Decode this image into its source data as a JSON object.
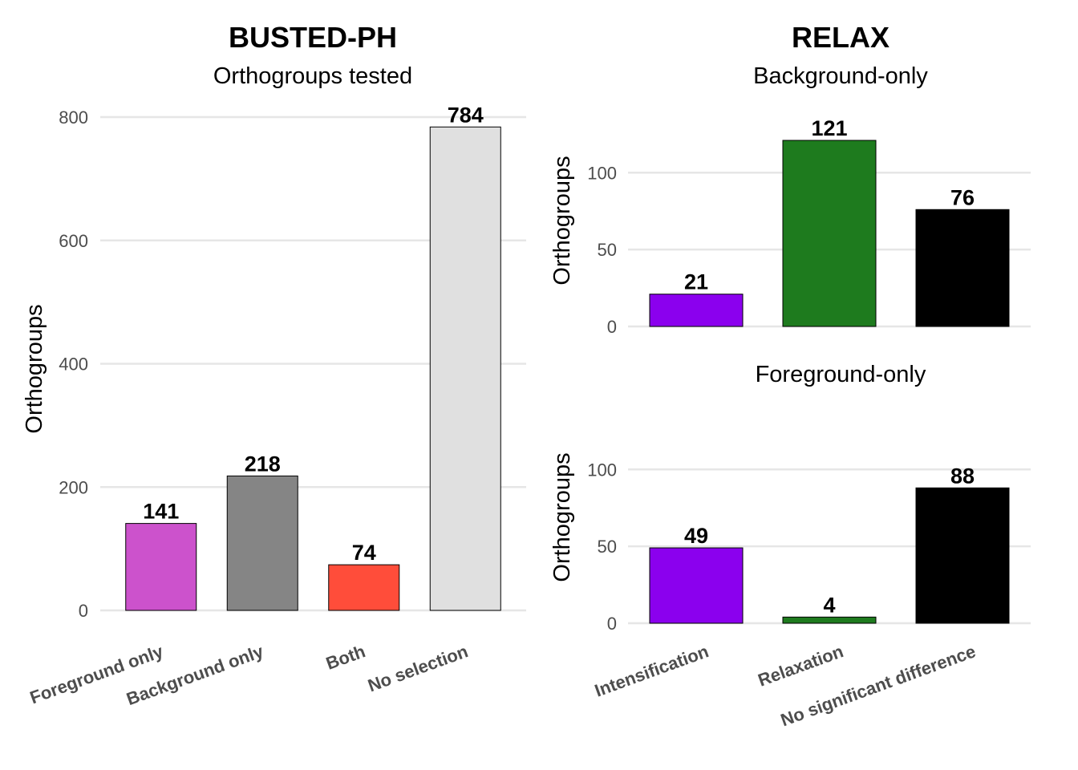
{
  "chart_data": [
    {
      "type": "bar",
      "title": "BUSTED-PH",
      "subtitle": "Orthogroups tested",
      "ylabel": "Orthogroups",
      "xlabel": "",
      "ylim": [
        0,
        800
      ],
      "yticks": [
        0,
        200,
        400,
        600,
        800
      ],
      "grid": true,
      "categories": [
        "Foreground only",
        "Background only",
        "Both",
        "No selection"
      ],
      "values": [
        141,
        218,
        74,
        784
      ],
      "value_labels": [
        "141",
        "218",
        "74",
        "784"
      ],
      "colors": [
        "#CC52CC",
        "#858585",
        "#FF4D3A",
        "#E0E0E0"
      ]
    },
    {
      "type": "bar",
      "title": "RELAX",
      "subtitle": "Background-only",
      "ylabel": "Orthogroups",
      "xlabel": "",
      "ylim": [
        0,
        121
      ],
      "yticks": [
        0,
        50,
        100
      ],
      "grid": true,
      "categories": [
        "Intensification",
        "Relaxation",
        "No significant difference"
      ],
      "values": [
        21,
        121,
        76
      ],
      "value_labels": [
        "21",
        "121",
        "76"
      ],
      "colors": [
        "#8B00EE",
        "#1E7B1E",
        "#000000"
      ]
    },
    {
      "type": "bar",
      "title": "",
      "subtitle": "Foreground-only",
      "ylabel": "Orthogroups",
      "xlabel": "",
      "ylim": [
        0,
        121
      ],
      "yticks": [
        0,
        50,
        100
      ],
      "grid": true,
      "categories": [
        "Intensification",
        "Relaxation",
        "No significant difference"
      ],
      "values": [
        49,
        4,
        88
      ],
      "value_labels": [
        "49",
        "4",
        "88"
      ],
      "colors": [
        "#8B00EE",
        "#1E7B1E",
        "#000000"
      ]
    }
  ]
}
